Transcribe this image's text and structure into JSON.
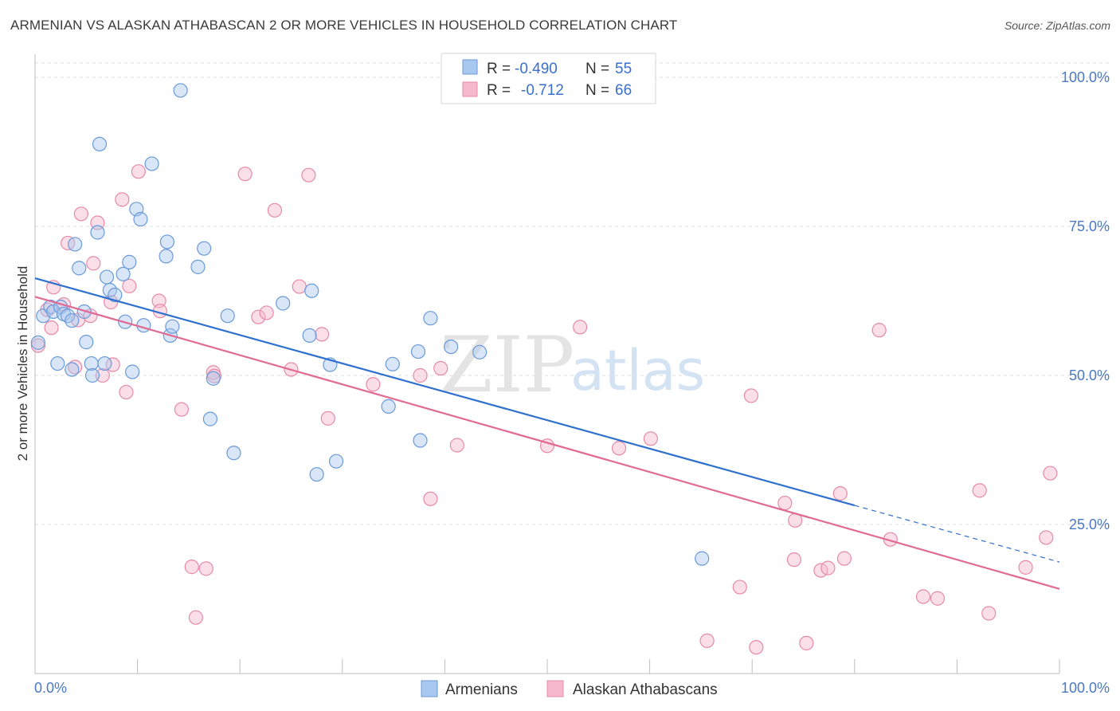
{
  "title": "ARMENIAN VS ALASKAN ATHABASCAN 2 OR MORE VEHICLES IN HOUSEHOLD CORRELATION CHART",
  "source": "Source: ZipAtlas.com",
  "watermark": {
    "zip": "ZIP",
    "atlas": "atlas"
  },
  "stats": [
    {
      "r_label": "R =",
      "r_value": "-0.490",
      "n_label": "N =",
      "n_value": "55"
    },
    {
      "r_label": "R =",
      "r_value": "-0.712",
      "n_label": "N =",
      "n_value": "66"
    }
  ],
  "colors": {
    "armenians_fill": "#a9c8f0",
    "armenians_stroke": "#6a9ad8",
    "armenians_line": "#2f6fce",
    "alaskan_fill": "#f6b8cc",
    "alaskan_stroke": "#e58aa8",
    "alaskan_line": "#e06a94",
    "grid": "#dedede",
    "tick_label": "#4a78c2"
  },
  "chart_data": {
    "type": "scatter",
    "xlabel": "",
    "ylabel": "2 or more Vehicles in Household",
    "xlim": [
      0,
      100
    ],
    "ylim": [
      0,
      100
    ],
    "x_tick_labels": [
      "0.0%",
      "100.0%"
    ],
    "y_ticks": [
      {
        "value": 25,
        "label": "25.0%"
      },
      {
        "value": 50,
        "label": "50.0%"
      },
      {
        "value": 75,
        "label": "75.0%"
      },
      {
        "value": 100,
        "label": "100.0%"
      }
    ],
    "grid": true,
    "legend_position": "bottom-center",
    "series": [
      {
        "name": "Armenians",
        "trend": {
          "x0": 0,
          "y0": 66.3,
          "x1": 80,
          "y1": 28.2,
          "x_dash_end": 100,
          "y_dash_end": 18.7
        },
        "points": [
          [
            0.3,
            55.5
          ],
          [
            0.8,
            60
          ],
          [
            1.5,
            61.5
          ],
          [
            1.8,
            60.7
          ],
          [
            2.2,
            52
          ],
          [
            2.5,
            61.5
          ],
          [
            2.8,
            60.3
          ],
          [
            3.2,
            60
          ],
          [
            3.6,
            59.2
          ],
          [
            3.6,
            51
          ],
          [
            3.9,
            72
          ],
          [
            4.3,
            68
          ],
          [
            4.8,
            60.7
          ],
          [
            5,
            55.6
          ],
          [
            5.5,
            52
          ],
          [
            5.6,
            50
          ],
          [
            6.1,
            74
          ],
          [
            6.3,
            88.8
          ],
          [
            6.8,
            52
          ],
          [
            7,
            66.5
          ],
          [
            7.3,
            64.3
          ],
          [
            7.8,
            63.5
          ],
          [
            8.6,
            67
          ],
          [
            8.8,
            59
          ],
          [
            9.2,
            69
          ],
          [
            9.5,
            50.6
          ],
          [
            9.9,
            77.9
          ],
          [
            10.3,
            76.2
          ],
          [
            10.6,
            58.4
          ],
          [
            11.4,
            85.5
          ],
          [
            12.8,
            70
          ],
          [
            12.9,
            72.4
          ],
          [
            13.2,
            56.7
          ],
          [
            13.4,
            58.2
          ],
          [
            14.2,
            97.8
          ],
          [
            15.9,
            68.2
          ],
          [
            16.5,
            71.3
          ],
          [
            17.1,
            42.7
          ],
          [
            17.4,
            49.5
          ],
          [
            18.8,
            60
          ],
          [
            19.4,
            37
          ],
          [
            24.2,
            62.1
          ],
          [
            26.8,
            56.7
          ],
          [
            27,
            64.2
          ],
          [
            27.5,
            33.4
          ],
          [
            28.8,
            51.8
          ],
          [
            29.4,
            35.6
          ],
          [
            34.5,
            44.8
          ],
          [
            34.9,
            51.9
          ],
          [
            37.4,
            54
          ],
          [
            37.6,
            39.1
          ],
          [
            38.6,
            59.6
          ],
          [
            40.6,
            54.8
          ],
          [
            43.4,
            53.9
          ],
          [
            65.1,
            19.3
          ]
        ]
      },
      {
        "name": "Alaskan Athabascans",
        "trend": {
          "x0": 0,
          "y0": 63.2,
          "x1": 100,
          "y1": 14.2
        },
        "points": [
          [
            0.3,
            55
          ],
          [
            1.2,
            61
          ],
          [
            1.6,
            58
          ],
          [
            1.8,
            64.8
          ],
          [
            2.8,
            61.9
          ],
          [
            3.2,
            72.2
          ],
          [
            3.9,
            51.4
          ],
          [
            4.2,
            59.3
          ],
          [
            4.5,
            77.1
          ],
          [
            5.4,
            60
          ],
          [
            5.7,
            68.8
          ],
          [
            6.1,
            75.6
          ],
          [
            6.6,
            50
          ],
          [
            7.4,
            62.3
          ],
          [
            7.6,
            51.8
          ],
          [
            8.5,
            79.5
          ],
          [
            8.9,
            47.2
          ],
          [
            9.2,
            65
          ],
          [
            10.1,
            84.2
          ],
          [
            12.1,
            62.5
          ],
          [
            12.2,
            60.8
          ],
          [
            14.3,
            44.3
          ],
          [
            15.3,
            17.9
          ],
          [
            15.7,
            9.4
          ],
          [
            16.7,
            17.6
          ],
          [
            17.4,
            50.5
          ],
          [
            17.5,
            49.9
          ],
          [
            20.5,
            83.8
          ],
          [
            21.8,
            59.8
          ],
          [
            22.6,
            60.5
          ],
          [
            23.4,
            77.7
          ],
          [
            25,
            51
          ],
          [
            25.8,
            64.9
          ],
          [
            26.7,
            83.6
          ],
          [
            28,
            56.9
          ],
          [
            28.6,
            42.8
          ],
          [
            33,
            48.5
          ],
          [
            37.6,
            50
          ],
          [
            38.6,
            29.3
          ],
          [
            39.6,
            51.2
          ],
          [
            41.2,
            38.3
          ],
          [
            50,
            38.2
          ],
          [
            53.2,
            58.1
          ],
          [
            57,
            37.8
          ],
          [
            60.1,
            39.4
          ],
          [
            65.6,
            5.5
          ],
          [
            68.8,
            14.5
          ],
          [
            69.9,
            46.6
          ],
          [
            70.4,
            4.4
          ],
          [
            73.2,
            28.6
          ],
          [
            74.1,
            19.1
          ],
          [
            74.2,
            25.7
          ],
          [
            75.3,
            5.1
          ],
          [
            76.7,
            17.3
          ],
          [
            77.4,
            17.7
          ],
          [
            78.6,
            30.2
          ],
          [
            79,
            19.3
          ],
          [
            82.4,
            57.6
          ],
          [
            83.5,
            22.5
          ],
          [
            86.7,
            12.9
          ],
          [
            88.1,
            12.6
          ],
          [
            92.2,
            30.7
          ],
          [
            93.1,
            10.1
          ],
          [
            98.7,
            22.8
          ],
          [
            99.1,
            33.6
          ],
          [
            96.7,
            17.8
          ]
        ]
      }
    ]
  }
}
